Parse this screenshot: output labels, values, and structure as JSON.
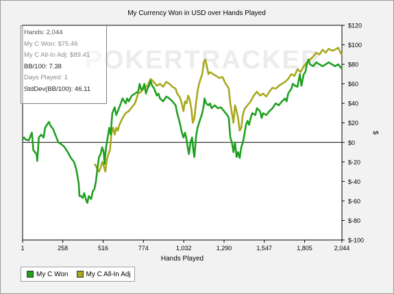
{
  "chart_data": {
    "type": "line",
    "title": "My Currency Won in USD over Hands Played",
    "xlabel": "Hands Played",
    "ylabel": "$",
    "xlim": [
      1,
      2044
    ],
    "ylim": [
      -100,
      120
    ],
    "x_ticks": [
      "1",
      "258",
      "516",
      "774",
      "1,032",
      "1,290",
      "1,547",
      "1,805",
      "2,044"
    ],
    "y_ticks": [
      "$120",
      "$100",
      "$80",
      "$60",
      "$40",
      "$20",
      "$0",
      "$-20",
      "$-40",
      "$-60",
      "$-80",
      "$-100"
    ],
    "x_tick_values": [
      1,
      258,
      516,
      774,
      1032,
      1290,
      1547,
      1805,
      2044
    ],
    "y_tick_values": [
      120,
      100,
      80,
      60,
      40,
      20,
      0,
      -20,
      -40,
      -60,
      -80,
      -100
    ],
    "legend_position": "bottom-left",
    "series": [
      {
        "name": "My C Won",
        "color": "#1fa01f",
        "points": [
          [
            1,
            3
          ],
          [
            10,
            5
          ],
          [
            20,
            3
          ],
          [
            40,
            2
          ],
          [
            60,
            10
          ],
          [
            70,
            -8
          ],
          [
            80,
            -10
          ],
          [
            90,
            -12
          ],
          [
            95,
            -19
          ],
          [
            105,
            5
          ],
          [
            120,
            8
          ],
          [
            135,
            5
          ],
          [
            145,
            15
          ],
          [
            160,
            19
          ],
          [
            170,
            21
          ],
          [
            180,
            17
          ],
          [
            195,
            14
          ],
          [
            210,
            8
          ],
          [
            230,
            0
          ],
          [
            250,
            -2
          ],
          [
            270,
            -5
          ],
          [
            290,
            -10
          ],
          [
            310,
            -16
          ],
          [
            330,
            -20
          ],
          [
            345,
            -28
          ],
          [
            360,
            -42
          ],
          [
            365,
            -55
          ],
          [
            375,
            -55
          ],
          [
            385,
            -57
          ],
          [
            395,
            -52
          ],
          [
            405,
            -58
          ],
          [
            415,
            -62
          ],
          [
            425,
            -55
          ],
          [
            440,
            -58
          ],
          [
            450,
            -50
          ],
          [
            460,
            -48
          ],
          [
            470,
            -40
          ],
          [
            480,
            -26
          ],
          [
            490,
            -15
          ],
          [
            500,
            -12
          ],
          [
            510,
            -5
          ],
          [
            520,
            -10
          ],
          [
            525,
            -22
          ],
          [
            535,
            -5
          ],
          [
            545,
            5
          ],
          [
            555,
            15
          ],
          [
            565,
            8
          ],
          [
            575,
            30
          ],
          [
            590,
            36
          ],
          [
            600,
            28
          ],
          [
            620,
            36
          ],
          [
            640,
            45
          ],
          [
            660,
            40
          ],
          [
            670,
            45
          ],
          [
            680,
            42
          ],
          [
            700,
            48
          ],
          [
            720,
            50
          ],
          [
            740,
            52
          ],
          [
            750,
            60
          ],
          [
            760,
            54
          ],
          [
            770,
            55
          ],
          [
            780,
            60
          ],
          [
            790,
            50
          ],
          [
            800,
            55
          ],
          [
            810,
            58
          ],
          [
            820,
            63
          ],
          [
            830,
            58
          ],
          [
            840,
            56
          ],
          [
            850,
            52
          ],
          [
            860,
            48
          ],
          [
            870,
            50
          ],
          [
            880,
            45
          ],
          [
            900,
            42
          ],
          [
            920,
            47
          ],
          [
            940,
            45
          ],
          [
            960,
            42
          ],
          [
            970,
            40
          ],
          [
            980,
            38
          ],
          [
            990,
            30
          ],
          [
            1000,
            24
          ],
          [
            1010,
            18
          ],
          [
            1020,
            10
          ],
          [
            1030,
            5
          ],
          [
            1040,
            10
          ],
          [
            1050,
            3
          ],
          [
            1060,
            -8
          ],
          [
            1065,
            -12
          ],
          [
            1075,
            0
          ],
          [
            1085,
            5
          ],
          [
            1095,
            -10
          ],
          [
            1100,
            -15
          ],
          [
            1110,
            5
          ],
          [
            1120,
            15
          ],
          [
            1130,
            20
          ],
          [
            1140,
            25
          ],
          [
            1150,
            30
          ],
          [
            1160,
            38
          ],
          [
            1165,
            45
          ],
          [
            1175,
            40
          ],
          [
            1190,
            38
          ],
          [
            1200,
            40
          ],
          [
            1210,
            35
          ],
          [
            1230,
            38
          ],
          [
            1250,
            35
          ],
          [
            1270,
            36
          ],
          [
            1290,
            32
          ],
          [
            1310,
            28
          ],
          [
            1320,
            25
          ],
          [
            1330,
            5
          ],
          [
            1340,
            0
          ],
          [
            1345,
            -5
          ],
          [
            1350,
            -10
          ],
          [
            1360,
            0
          ],
          [
            1370,
            -15
          ],
          [
            1380,
            -10
          ],
          [
            1390,
            -16
          ],
          [
            1400,
            -5
          ],
          [
            1410,
            0
          ],
          [
            1420,
            8
          ],
          [
            1430,
            18
          ],
          [
            1440,
            22
          ],
          [
            1450,
            18
          ],
          [
            1460,
            25
          ],
          [
            1470,
            30
          ],
          [
            1490,
            28
          ],
          [
            1500,
            35
          ],
          [
            1520,
            32
          ],
          [
            1530,
            25
          ],
          [
            1540,
            30
          ],
          [
            1560,
            28
          ],
          [
            1580,
            32
          ],
          [
            1600,
            35
          ],
          [
            1620,
            40
          ],
          [
            1640,
            38
          ],
          [
            1660,
            42
          ],
          [
            1680,
            45
          ],
          [
            1690,
            42
          ],
          [
            1700,
            50
          ],
          [
            1720,
            55
          ],
          [
            1730,
            60
          ],
          [
            1745,
            58
          ],
          [
            1760,
            57
          ],
          [
            1775,
            70
          ],
          [
            1785,
            58
          ],
          [
            1800,
            70
          ],
          [
            1810,
            72
          ],
          [
            1820,
            80
          ],
          [
            1830,
            85
          ],
          [
            1840,
            80
          ],
          [
            1860,
            78
          ],
          [
            1880,
            82
          ],
          [
            1900,
            80
          ],
          [
            1920,
            78
          ],
          [
            1940,
            80
          ],
          [
            1960,
            82
          ],
          [
            1980,
            80
          ],
          [
            2000,
            78
          ],
          [
            2020,
            80
          ],
          [
            2044,
            75.46
          ]
        ]
      },
      {
        "name": "My C All-In Adj",
        "color": "#a8a81e",
        "points": [
          [
            460,
            -22
          ],
          [
            470,
            -24
          ],
          [
            480,
            -28
          ],
          [
            490,
            -30
          ],
          [
            500,
            -26
          ],
          [
            510,
            -20
          ],
          [
            520,
            -24
          ],
          [
            530,
            -30
          ],
          [
            540,
            -18
          ],
          [
            550,
            -12
          ],
          [
            560,
            -8
          ],
          [
            570,
            10
          ],
          [
            580,
            15
          ],
          [
            590,
            8
          ],
          [
            600,
            15
          ],
          [
            610,
            12
          ],
          [
            620,
            18
          ],
          [
            640,
            25
          ],
          [
            660,
            30
          ],
          [
            680,
            32
          ],
          [
            700,
            36
          ],
          [
            720,
            40
          ],
          [
            740,
            50
          ],
          [
            760,
            52
          ],
          [
            780,
            56
          ],
          [
            800,
            58
          ],
          [
            820,
            65
          ],
          [
            840,
            62
          ],
          [
            860,
            58
          ],
          [
            880,
            60
          ],
          [
            900,
            57
          ],
          [
            920,
            62
          ],
          [
            940,
            60
          ],
          [
            960,
            57
          ],
          [
            980,
            55
          ],
          [
            990,
            50
          ],
          [
            1000,
            48
          ],
          [
            1010,
            45
          ],
          [
            1020,
            40
          ],
          [
            1030,
            32
          ],
          [
            1040,
            42
          ],
          [
            1050,
            40
          ],
          [
            1060,
            48
          ],
          [
            1070,
            44
          ],
          [
            1080,
            35
          ],
          [
            1090,
            20
          ],
          [
            1100,
            25
          ],
          [
            1110,
            40
          ],
          [
            1120,
            52
          ],
          [
            1130,
            60
          ],
          [
            1140,
            65
          ],
          [
            1150,
            70
          ],
          [
            1160,
            82
          ],
          [
            1170,
            85
          ],
          [
            1180,
            78
          ],
          [
            1190,
            70
          ],
          [
            1200,
            72
          ],
          [
            1220,
            70
          ],
          [
            1240,
            68
          ],
          [
            1260,
            66
          ],
          [
            1280,
            67
          ],
          [
            1300,
            60
          ],
          [
            1310,
            58
          ],
          [
            1320,
            55
          ],
          [
            1330,
            40
          ],
          [
            1340,
            30
          ],
          [
            1350,
            20
          ],
          [
            1360,
            38
          ],
          [
            1370,
            32
          ],
          [
            1380,
            25
          ],
          [
            1390,
            12
          ],
          [
            1400,
            15
          ],
          [
            1410,
            28
          ],
          [
            1420,
            34
          ],
          [
            1440,
            38
          ],
          [
            1460,
            42
          ],
          [
            1480,
            48
          ],
          [
            1500,
            52
          ],
          [
            1520,
            48
          ],
          [
            1540,
            50
          ],
          [
            1560,
            47
          ],
          [
            1580,
            52
          ],
          [
            1600,
            56
          ],
          [
            1620,
            55
          ],
          [
            1640,
            58
          ],
          [
            1660,
            60
          ],
          [
            1680,
            62
          ],
          [
            1700,
            65
          ],
          [
            1720,
            70
          ],
          [
            1740,
            68
          ],
          [
            1760,
            75
          ],
          [
            1780,
            72
          ],
          [
            1800,
            78
          ],
          [
            1820,
            82
          ],
          [
            1840,
            85
          ],
          [
            1860,
            88
          ],
          [
            1880,
            92
          ],
          [
            1900,
            90
          ],
          [
            1920,
            95
          ],
          [
            1940,
            92
          ],
          [
            1960,
            96
          ],
          [
            1980,
            94
          ],
          [
            2000,
            95
          ],
          [
            2020,
            97
          ],
          [
            2044,
            89.41
          ]
        ]
      }
    ]
  },
  "stats": {
    "hands": "Hands: 2,044",
    "won": "My C Won: $75.46",
    "allin": "My C All-In Adj: $89.41",
    "bb100": "BB/100: 7.38",
    "days": "Days Played: 1",
    "stddev": "StdDev(BB/100): 46.11"
  },
  "watermark": "POKERTRACKER"
}
